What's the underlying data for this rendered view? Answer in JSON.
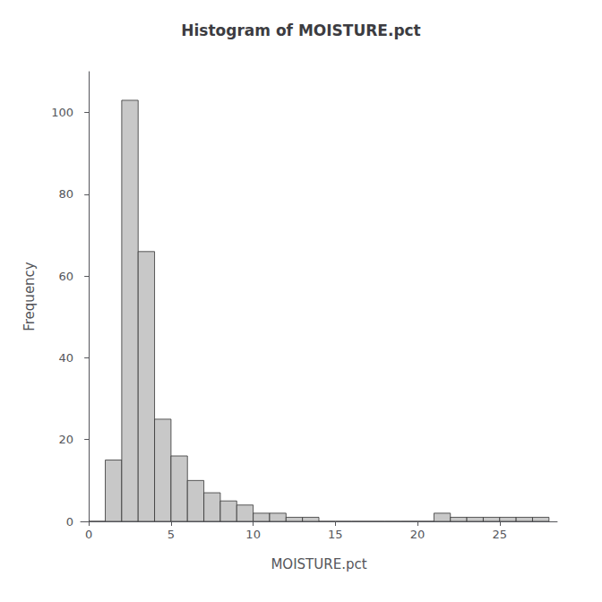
{
  "chart_data": {
    "type": "histogram",
    "title": "Histogram of MOISTURE.pct",
    "xlabel": "MOISTURE.pct",
    "ylabel": "Frequency",
    "bins": [
      0,
      1,
      2,
      3,
      4,
      5,
      6,
      7,
      8,
      9,
      10,
      11,
      12,
      13,
      14,
      15,
      16,
      17,
      18,
      19,
      20,
      21,
      22,
      23,
      24,
      25,
      26,
      27,
      28
    ],
    "values": [
      0,
      15,
      103,
      66,
      25,
      16,
      10,
      7,
      5,
      4,
      2,
      2,
      1,
      1,
      0,
      0,
      0,
      0,
      0,
      0,
      0,
      2,
      1,
      1,
      1,
      1,
      1,
      1
    ],
    "color": "#c8c8c8",
    "xlim": [
      -0.5,
      28.5
    ],
    "xticks": [
      0,
      5,
      10,
      15,
      20,
      25
    ],
    "ylim": [
      0,
      110
    ],
    "yticks": [
      0,
      20,
      40,
      60,
      80,
      100
    ],
    "grid": false
  }
}
